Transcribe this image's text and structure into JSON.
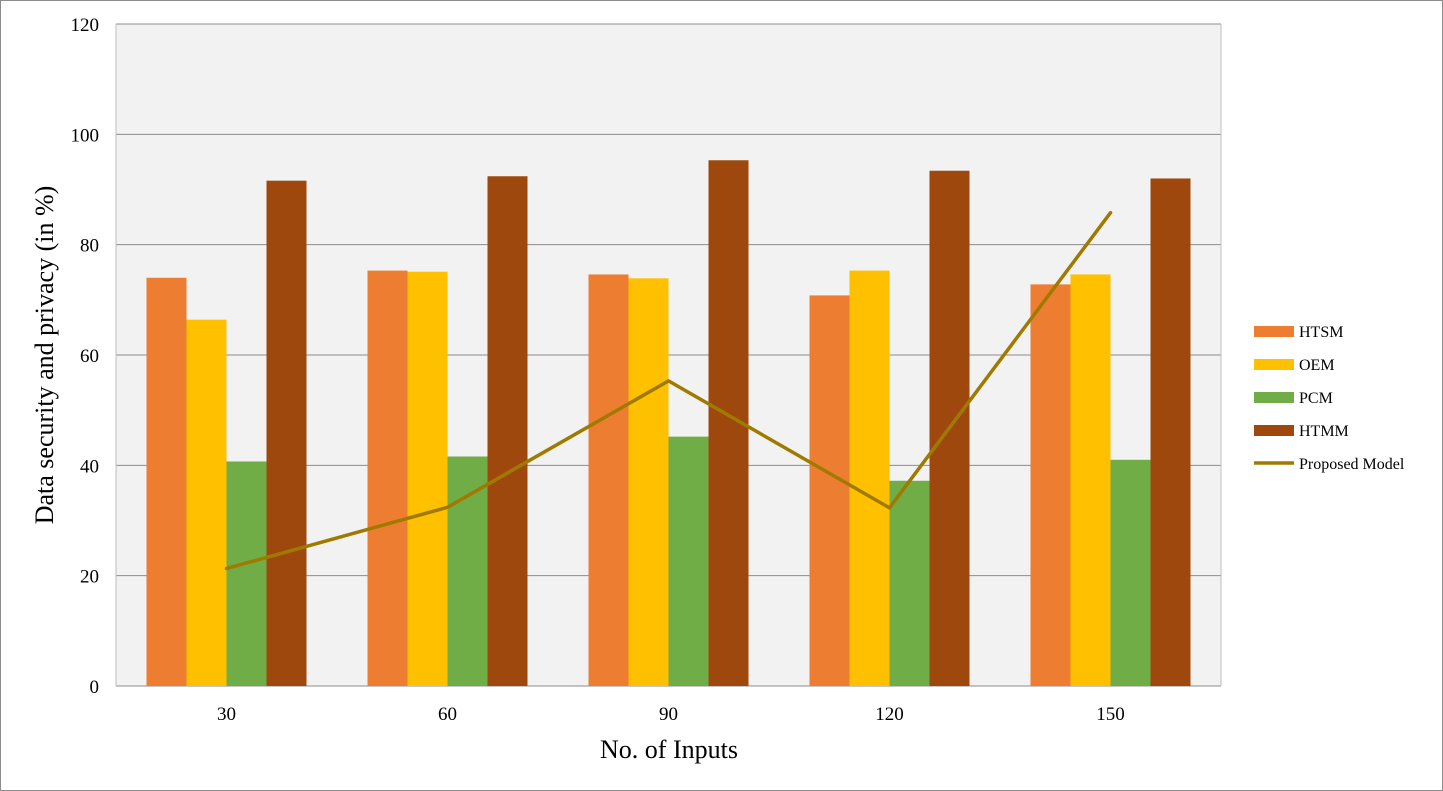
{
  "chart_data": {
    "type": "bar",
    "title": "",
    "xlabel": "No. of Inputs",
    "ylabel": "Data security and privacy (in %)",
    "ylim": [
      0,
      120
    ],
    "yticks": [
      0,
      20,
      40,
      60,
      80,
      100,
      120
    ],
    "grid": true,
    "legend_position": "right",
    "categories": [
      "30",
      "60",
      "90",
      "120",
      "150"
    ],
    "series": [
      {
        "name": "HTSM",
        "kind": "bar",
        "color": "#ED7D31",
        "values": [
          74,
          75.3,
          74.6,
          70.8,
          72.8
        ]
      },
      {
        "name": "OEM",
        "kind": "bar",
        "color": "#FFC000",
        "values": [
          66.4,
          75.1,
          73.9,
          75.3,
          74.6
        ]
      },
      {
        "name": "PCM",
        "kind": "bar",
        "color": "#70AD47",
        "values": [
          40.7,
          41.6,
          45.2,
          37.2,
          41
        ]
      },
      {
        "name": "HTMM",
        "kind": "bar",
        "color": "#9E480E",
        "values": [
          91.6,
          92.4,
          95.3,
          93.4,
          92
        ]
      },
      {
        "name": "Proposed Model",
        "kind": "line",
        "color": "#A07A00",
        "values": [
          21.3,
          32.4,
          55.3,
          32.3,
          85.8
        ]
      }
    ]
  }
}
